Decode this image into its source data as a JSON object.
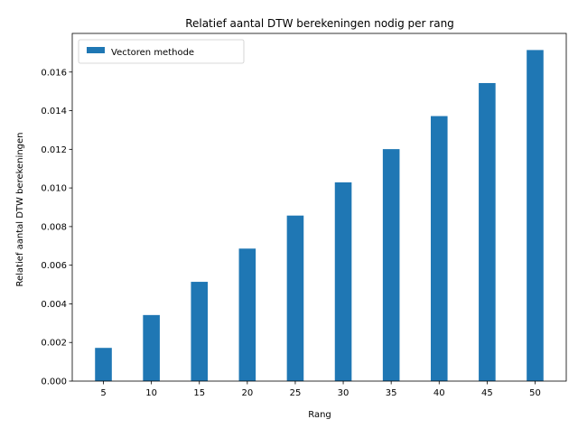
{
  "chart_data": {
    "type": "bar",
    "title": "Relatief aantal DTW berekeningen nodig per rang",
    "xlabel": "Rang",
    "ylabel": "Relatief aantal DTW berekeningen",
    "categories": [
      "5",
      "10",
      "15",
      "20",
      "25",
      "30",
      "35",
      "40",
      "45",
      "50"
    ],
    "series": [
      {
        "name": "Vectoren methode",
        "color": "#1f77b4",
        "values": [
          0.00172,
          0.00342,
          0.00514,
          0.00686,
          0.00857,
          0.01029,
          0.01201,
          0.01372,
          0.01543,
          0.01714
        ]
      }
    ],
    "ylim": [
      0,
      0.018
    ],
    "yticks": [
      "0.000",
      "0.002",
      "0.004",
      "0.006",
      "0.008",
      "0.010",
      "0.012",
      "0.014",
      "0.016"
    ],
    "legend_position": "top-left",
    "grid": false
  }
}
